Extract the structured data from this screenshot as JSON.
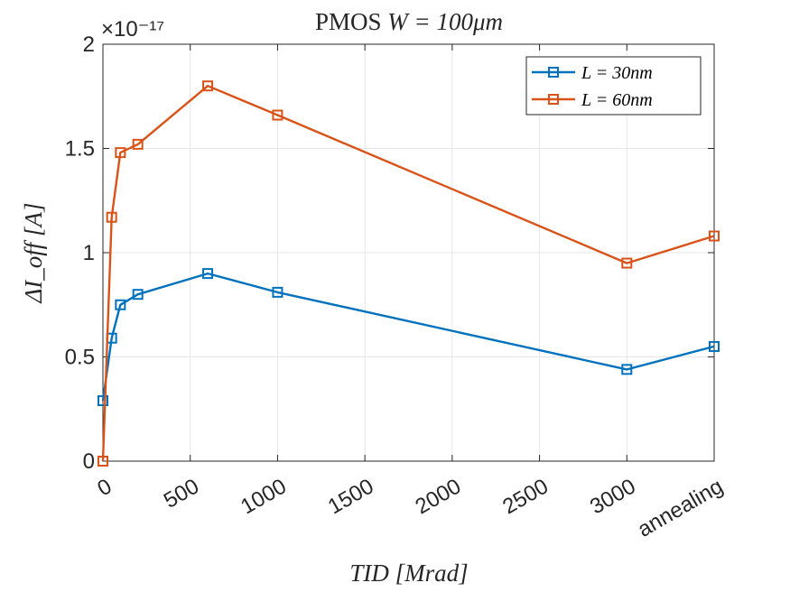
{
  "chart_data": {
    "type": "line",
    "title_prefix": "PMOS",
    "title_math": "W = 100μm",
    "xlabel": "TID [Mrad]",
    "ylabel": "ΔI_off [A]",
    "y_exponent": "×10⁻¹⁷",
    "xlim": [
      0,
      3500
    ],
    "ylim": [
      0,
      2
    ],
    "x_ticks": [
      0,
      500,
      1000,
      1500,
      2000,
      2500,
      3000,
      3500
    ],
    "x_tick_labels": [
      "0",
      "500",
      "1000",
      "1500",
      "2000",
      "2500",
      "3000",
      "annealing"
    ],
    "y_ticks": [
      0,
      0.5,
      1,
      1.5,
      2
    ],
    "y_tick_labels": [
      "0",
      "0.5",
      "1",
      "1.5",
      "2"
    ],
    "grid": true,
    "legend_position": "top-right",
    "x": [
      0,
      50,
      100,
      200,
      600,
      1000,
      3000,
      3500
    ],
    "series": [
      {
        "name": "L = 30nm",
        "color": "#0072BD",
        "values": [
          0.29,
          0.59,
          0.75,
          0.8,
          0.9,
          0.81,
          0.44,
          0.55
        ]
      },
      {
        "name": "L = 60nm",
        "color": "#D95319",
        "values": [
          0.0,
          1.17,
          1.48,
          1.52,
          1.8,
          1.66,
          0.95,
          1.08
        ]
      }
    ],
    "marker": "square"
  }
}
